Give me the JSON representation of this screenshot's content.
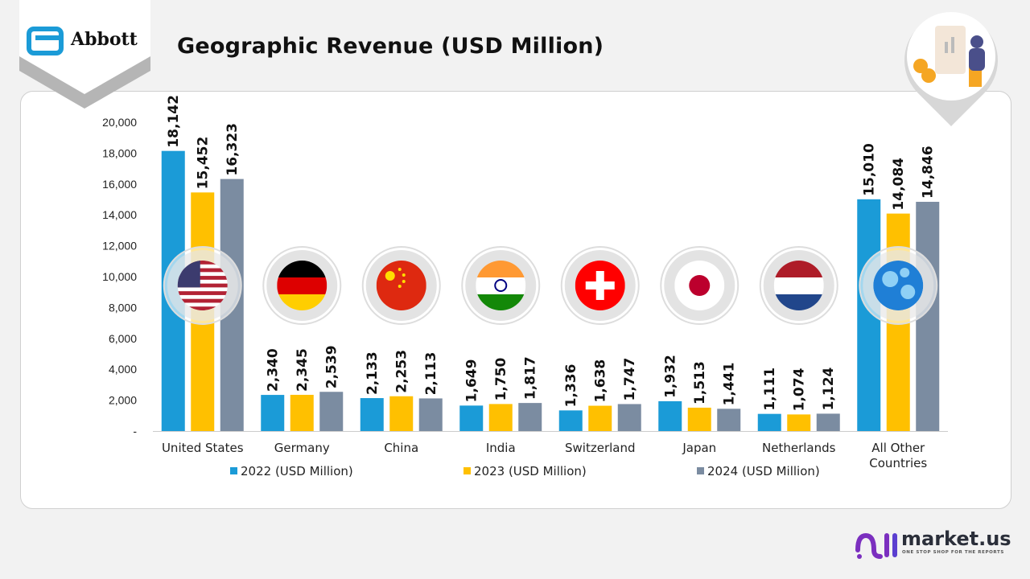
{
  "header": {
    "brand": "Abbott",
    "title": "Geographic Revenue (USD Million)"
  },
  "footer": {
    "logo_text": "market.us",
    "tagline": "ONE STOP SHOP FOR THE REPORTS"
  },
  "colors": {
    "2022": "#1b9bd7",
    "2023": "#ffc000",
    "2024": "#7b8ca1",
    "brand_blue": "#1b9bd7",
    "market_purple": "#7b2fbf"
  },
  "chart_data": {
    "type": "bar",
    "title": "Geographic Revenue (USD Million)",
    "categories": [
      "United States",
      "Germany",
      "China",
      "India",
      "Switzerland",
      "Japan",
      "Netherlands",
      "All Other Countries"
    ],
    "category_icons": [
      "us-flag-icon",
      "germany-flag-icon",
      "china-flag-icon",
      "india-flag-icon",
      "switzerland-flag-icon",
      "japan-flag-icon",
      "netherlands-flag-icon",
      "globe-icon"
    ],
    "series": [
      {
        "name": "2022 (USD Million)",
        "values": [
          18142,
          2340,
          2133,
          1649,
          1336,
          1932,
          1111,
          15010
        ]
      },
      {
        "name": "2023 (USD Million)",
        "values": [
          15452,
          2345,
          2253,
          1750,
          1638,
          1513,
          1074,
          14084
        ]
      },
      {
        "name": "2024 (USD Million)",
        "values": [
          16323,
          2539,
          2113,
          1817,
          1747,
          1441,
          1124,
          14846
        ]
      }
    ],
    "data_labels": [
      [
        "18,142",
        "2,340",
        "2,133",
        "1,649",
        "1,336",
        "1,932",
        "1,111",
        "15,010"
      ],
      [
        "15,452",
        "2,345",
        "2,253",
        "1,750",
        "1,638",
        "1,513",
        "1,074",
        "14,084"
      ],
      [
        "16,323",
        "2,539",
        "2,113",
        "1,817",
        "1,747",
        "1,441",
        "1,124",
        "14,846"
      ]
    ],
    "yticks": [
      "-",
      "2,000",
      "4,000",
      "6,000",
      "8,000",
      "10,000",
      "12,000",
      "14,000",
      "16,000",
      "18,000",
      "20,000"
    ],
    "ylim": [
      0,
      20000
    ],
    "grid": false,
    "legend_position": "bottom",
    "xlabel": "",
    "ylabel": ""
  }
}
